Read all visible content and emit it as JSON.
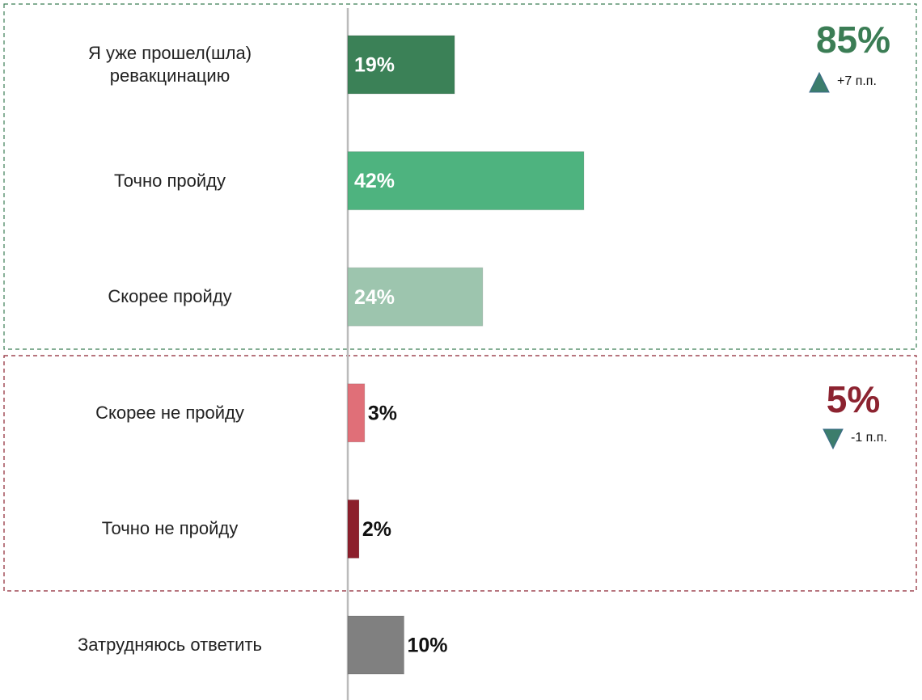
{
  "chart_data": {
    "type": "bar",
    "orientation": "horizontal",
    "categories": [
      "Я уже прошел(шла)\nревакцинацию",
      "Точно пройду",
      "Скорее пройду",
      "Скорее не пройду",
      "Точно не пройду",
      "Затрудняюсь ответить"
    ],
    "values": [
      19,
      42,
      24,
      3,
      2,
      10
    ],
    "value_labels": [
      "19%",
      "42%",
      "24%",
      "3%",
      "2%",
      "10%"
    ],
    "colors": [
      "#3b8157",
      "#4eb37f",
      "#9dc5ae",
      "#e06f78",
      "#8c1f2c",
      "#808080"
    ],
    "annotations": [
      {
        "text": "85%",
        "change": "+7 п.п.",
        "color": "#3b7d55",
        "direction": "up"
      },
      {
        "text": "5%",
        "change": "-1 п.п.",
        "color": "#8c2330",
        "direction": "down"
      }
    ]
  }
}
